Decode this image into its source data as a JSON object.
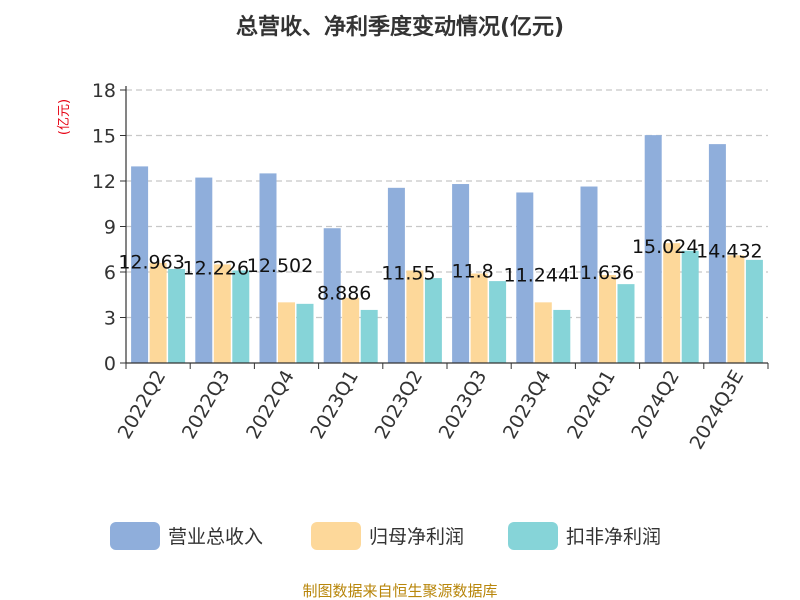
{
  "chart_data": {
    "type": "bar",
    "title": "总营收、净利季度变动情况(亿元)",
    "ylabel": "(亿元)",
    "ylim": [
      0,
      18
    ],
    "yticks": [
      0,
      3,
      6,
      9,
      12,
      15,
      18
    ],
    "categories": [
      "2022Q2",
      "2022Q3",
      "2022Q4",
      "2023Q1",
      "2023Q2",
      "2023Q3",
      "2023Q4",
      "2024Q1",
      "2024Q2",
      "2024Q3E"
    ],
    "series": [
      {
        "name": "营业总收入",
        "color": "#8faedb",
        "values": [
          12.963,
          12.226,
          12.502,
          8.886,
          11.55,
          11.8,
          11.244,
          11.636,
          15.024,
          14.432
        ]
      },
      {
        "name": "归母净利润",
        "color": "#fdd89a",
        "values": [
          6.6,
          6.5,
          4.0,
          4.3,
          6.1,
          5.9,
          4.0,
          5.8,
          7.9,
          7.1
        ]
      },
      {
        "name": "扣非净利润",
        "color": "#86d4d8",
        "values": [
          6.2,
          6.1,
          3.9,
          3.5,
          5.6,
          5.4,
          3.5,
          5.2,
          7.4,
          6.8
        ]
      }
    ],
    "data_labels": [
      "12.963",
      "12.226",
      "12.502",
      "8.886",
      "11.55",
      "11.8",
      "11.244",
      "11.636",
      "15.024",
      "14.432"
    ],
    "grid": true,
    "legend_position": "bottom"
  },
  "source": "制图数据来自恒生聚源数据库"
}
